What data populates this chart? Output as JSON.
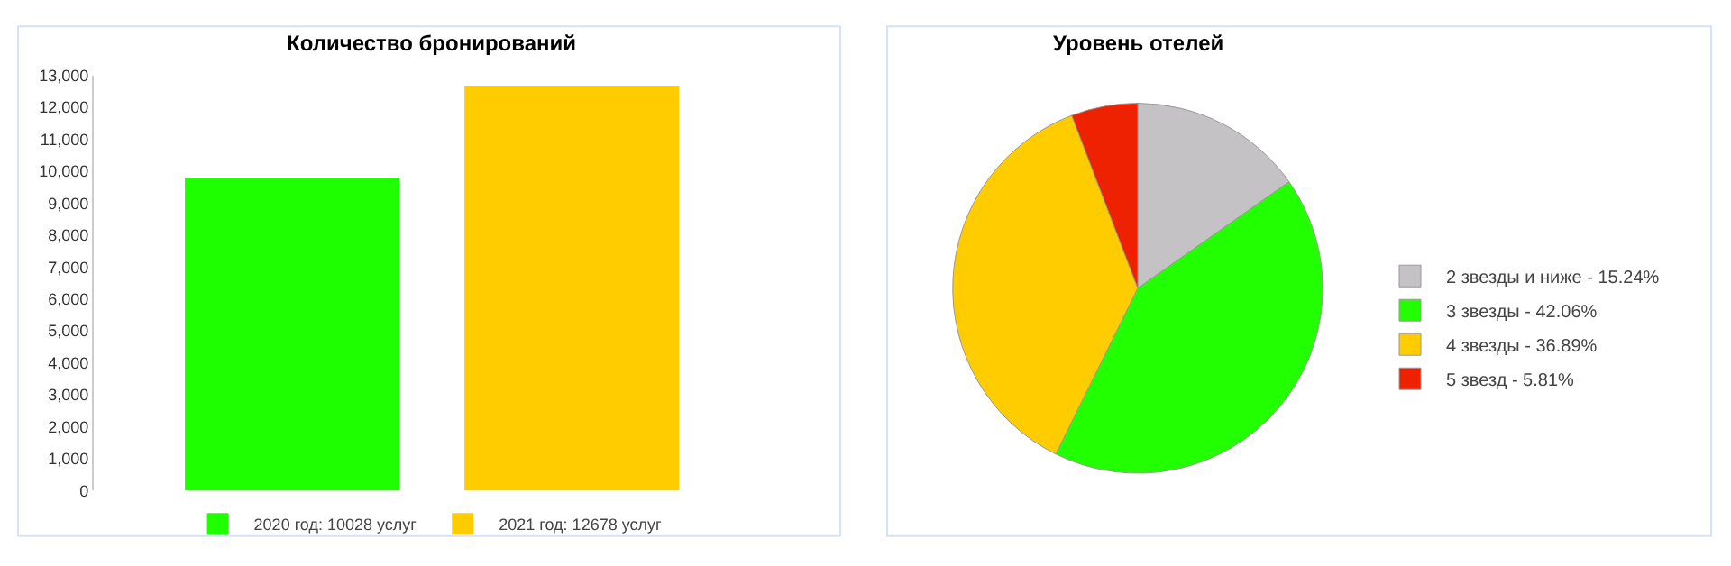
{
  "chart_data": [
    {
      "type": "bar",
      "title": "Количество бронирований",
      "categories": [
        null
      ],
      "series": [
        {
          "name": "2020 год: 10028 услуг",
          "color": "#1eff00",
          "values": [
            9800
          ]
        },
        {
          "name": "2021 год: 12678 услуг",
          "color": "#ffcc00",
          "values": [
            12680
          ]
        }
      ],
      "ylim": [
        0,
        13000
      ],
      "yticks": [
        {
          "value": 0,
          "label": "0"
        },
        {
          "value": 1000,
          "label": "1,000"
        },
        {
          "value": 2000,
          "label": "2,000"
        },
        {
          "value": 3000,
          "label": "3,000"
        },
        {
          "value": 4000,
          "label": "4,000"
        },
        {
          "value": 5000,
          "label": "5,000"
        },
        {
          "value": 6000,
          "label": "6,000"
        },
        {
          "value": 7000,
          "label": "7,000"
        },
        {
          "value": 8000,
          "label": "8,000"
        },
        {
          "value": 9000,
          "label": "9,000"
        },
        {
          "value": 10000,
          "label": "10,000"
        },
        {
          "value": 11000,
          "label": "11,000"
        },
        {
          "value": 12000,
          "label": "12,000"
        },
        {
          "value": 13000,
          "label": "13,000"
        }
      ],
      "legend": "bottom"
    },
    {
      "type": "pie",
      "title": "Уровень отелей",
      "categories": [
        "2 звезды и ниже - 15.24%",
        "3 звезды - 42.06%",
        "4 звезды - 36.89%",
        "5 звезд - 5.81%"
      ],
      "values": [
        15.24,
        42.06,
        36.89,
        5.81
      ],
      "colors": [
        "#c4c2c4",
        "#22ff00",
        "#ffcc00",
        "#ee2200"
      ],
      "legend": "right"
    }
  ]
}
